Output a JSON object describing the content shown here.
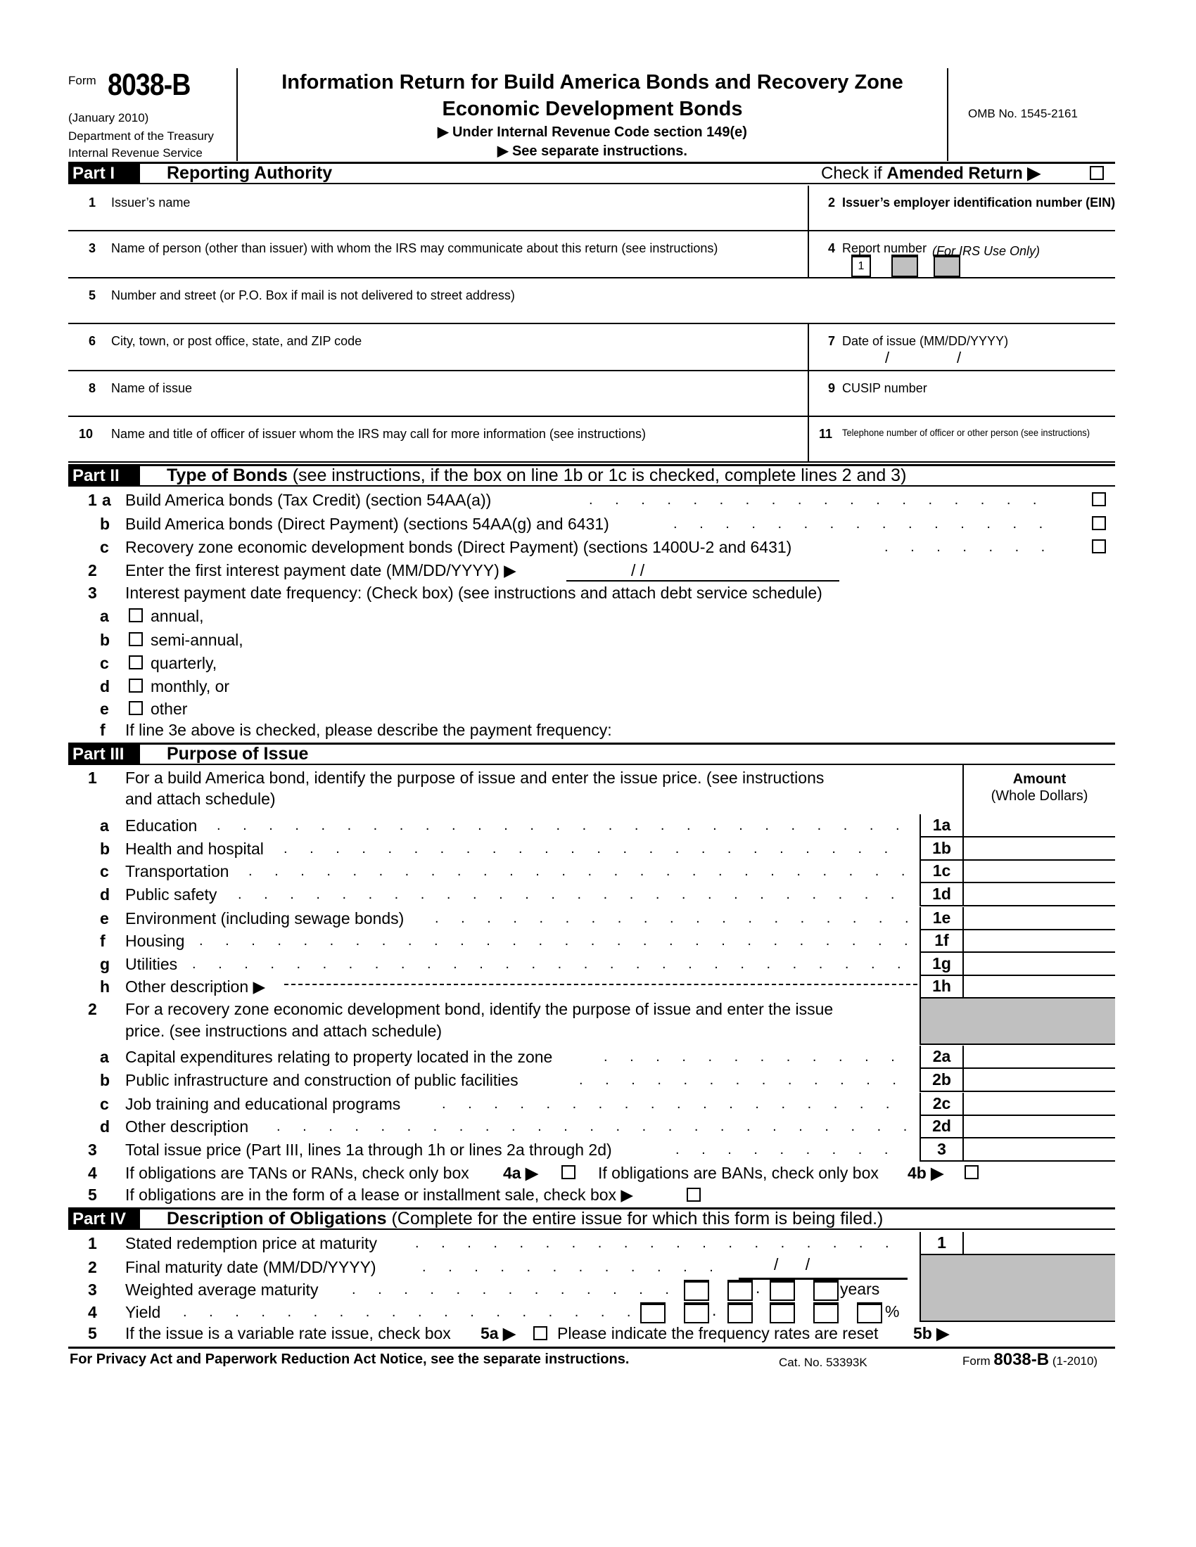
{
  "header": {
    "form_word": "Form",
    "form_number": "8038-B",
    "revision": "(January 2010)",
    "dept": "Department of the Treasury",
    "irs": "Internal Revenue Service",
    "title1": "Information Return for Build America Bonds and Recovery Zone",
    "title2": "Economic Development Bonds",
    "sub1": "▶ Under Internal Revenue Code section 149(e)",
    "sub2": "▶ See separate instructions.",
    "omb": "OMB No. 1545-2161"
  },
  "part1": {
    "label": "Part I",
    "title": "Reporting Authority",
    "amended_prefix": "Check if ",
    "amended_bold": "Amended Return ▶",
    "fields": {
      "f1": "Issuer’s name",
      "f2": "Issuer’s employer identification number (EIN)",
      "f3": "Name of person (other than issuer) with whom the IRS may communicate about this return (see instructions)",
      "f4": "Report number",
      "f4_note": "(For IRS Use Only)",
      "f4_box1": "1",
      "f5": "Number and street (or P.O. Box if mail is not delivered to street address)",
      "f6": "City, town, or post office, state, and ZIP code",
      "f7": "Date of issue (MM/DD/YYYY)",
      "f8": "Name of issue",
      "f9": "CUSIP number",
      "f10": "Name and title of officer of issuer whom the IRS may call for more information (see instructions)",
      "f11": "Telephone number of officer or other person (see instructions)",
      "slash": "/"
    }
  },
  "part2": {
    "label": "Part II",
    "title_bold": "Type of Bonds",
    "title_rest": " (see instructions, if the box on line 1b or 1c is checked, complete lines 2 and 3)",
    "rows": [
      {
        "n": "1",
        "l": "a",
        "t": "Build America bonds (Tax Credit) (section 54AA(a))",
        "cb": "right",
        "dots": true
      },
      {
        "n": "",
        "l": "b",
        "t": "Build America bonds (Direct Payment) (sections 54AA(g) and 6431)",
        "cb": "right",
        "dots": true
      },
      {
        "n": "",
        "l": "c",
        "t": "Recovery zone economic development bonds (Direct Payment) (sections 1400U-2 and 6431)",
        "cb": "right",
        "dots": true
      },
      {
        "n": "2",
        "l": "",
        "t": "Enter the first interest payment date (MM/DD/YYYY) ▶",
        "date": "/           /"
      },
      {
        "n": "3",
        "l": "",
        "t": "Interest payment date frequency: (Check box) (see instructions and attach debt service schedule)"
      },
      {
        "n": "",
        "l": "a",
        "t": "annual,",
        "cb": "left"
      },
      {
        "n": "",
        "l": "b",
        "t": "semi-annual,",
        "cb": "left"
      },
      {
        "n": "",
        "l": "c",
        "t": "quarterly,",
        "cb": "left"
      },
      {
        "n": "",
        "l": "d",
        "t": "monthly, or",
        "cb": "left"
      },
      {
        "n": "",
        "l": "e",
        "t": "other",
        "cb": "left"
      },
      {
        "n": "",
        "l": "f",
        "t": "If line 3e above is checked, please describe the payment frequency:"
      }
    ]
  },
  "part3": {
    "label": "Part III",
    "title": "Purpose of Issue",
    "amount_header": "Amount",
    "amount_sub": "(Whole Dollars)",
    "intro1a": "For a build America bond, identify the purpose of issue and enter the issue price. (see instructions",
    "intro1b": "and attach schedule)",
    "intro2a": "For a recovery zone economic development bond, identify the purpose of issue and enter the issue",
    "intro2b": "price. (see instructions and attach schedule)",
    "rows1": [
      {
        "l": "a",
        "t": "Education",
        "box": "1a"
      },
      {
        "l": "b",
        "t": "Health and hospital",
        "box": "1b"
      },
      {
        "l": "c",
        "t": "Transportation",
        "box": "1c"
      },
      {
        "l": "d",
        "t": "Public safety",
        "box": "1d"
      },
      {
        "l": "e",
        "t": "Environment (including sewage bonds)",
        "box": "1e"
      },
      {
        "l": "f",
        "t": "Housing",
        "box": "1f"
      },
      {
        "l": "g",
        "t": "Utilities",
        "box": "1g"
      },
      {
        "l": "h",
        "t": "Other description ▶",
        "box": "1h"
      }
    ],
    "rows2": [
      {
        "l": "a",
        "t": "Capital expenditures relating to property located in the zone",
        "box": "2a"
      },
      {
        "l": "b",
        "t": "Public infrastructure and construction of public facilities",
        "box": "2b"
      },
      {
        "l": "c",
        "t": "Job training and educational programs",
        "box": "2c"
      },
      {
        "l": "d",
        "t": "Other description",
        "box": "2d"
      }
    ],
    "line3": {
      "t": "Total issue price (Part III, lines 1a through 1h or lines 2a through 2d)",
      "box": "3"
    },
    "line4a": "If obligations are TANs or RANs, check only box ",
    "line4a_b": "4a ▶",
    "line4b": "If obligations are BANs, check only box ",
    "line4b_b": "4b ▶",
    "line5": "If obligations are in the form of a lease or installment sale, check box ▶"
  },
  "part4": {
    "label": "Part IV",
    "title_bold": "Description of Obligations",
    "title_rest": " (Complete for the entire issue for which this form is being filed.)",
    "l1": "Stated redemption price at maturity",
    "l1box": "1",
    "l2": "Final maturity date (MM/DD/YYYY)",
    "l2date": "/      /",
    "l3": "Weighted average maturity",
    "l3unit": "years",
    "l4": "Yield",
    "l4unit": "%",
    "dot": ".",
    "l5": "If the issue is a variable rate issue, check box ",
    "l5b": "5a ▶",
    "l5c": "Please indicate the frequency rates are reset ",
    "l5d": "5b ▶"
  },
  "footer": {
    "left": "For Privacy Act and Paperwork Reduction Act Notice, see the separate instructions.",
    "cat": "Cat. No. 53393K",
    "form_word": "Form ",
    "form_number": "8038-B",
    "rev": " (1-2010)"
  }
}
